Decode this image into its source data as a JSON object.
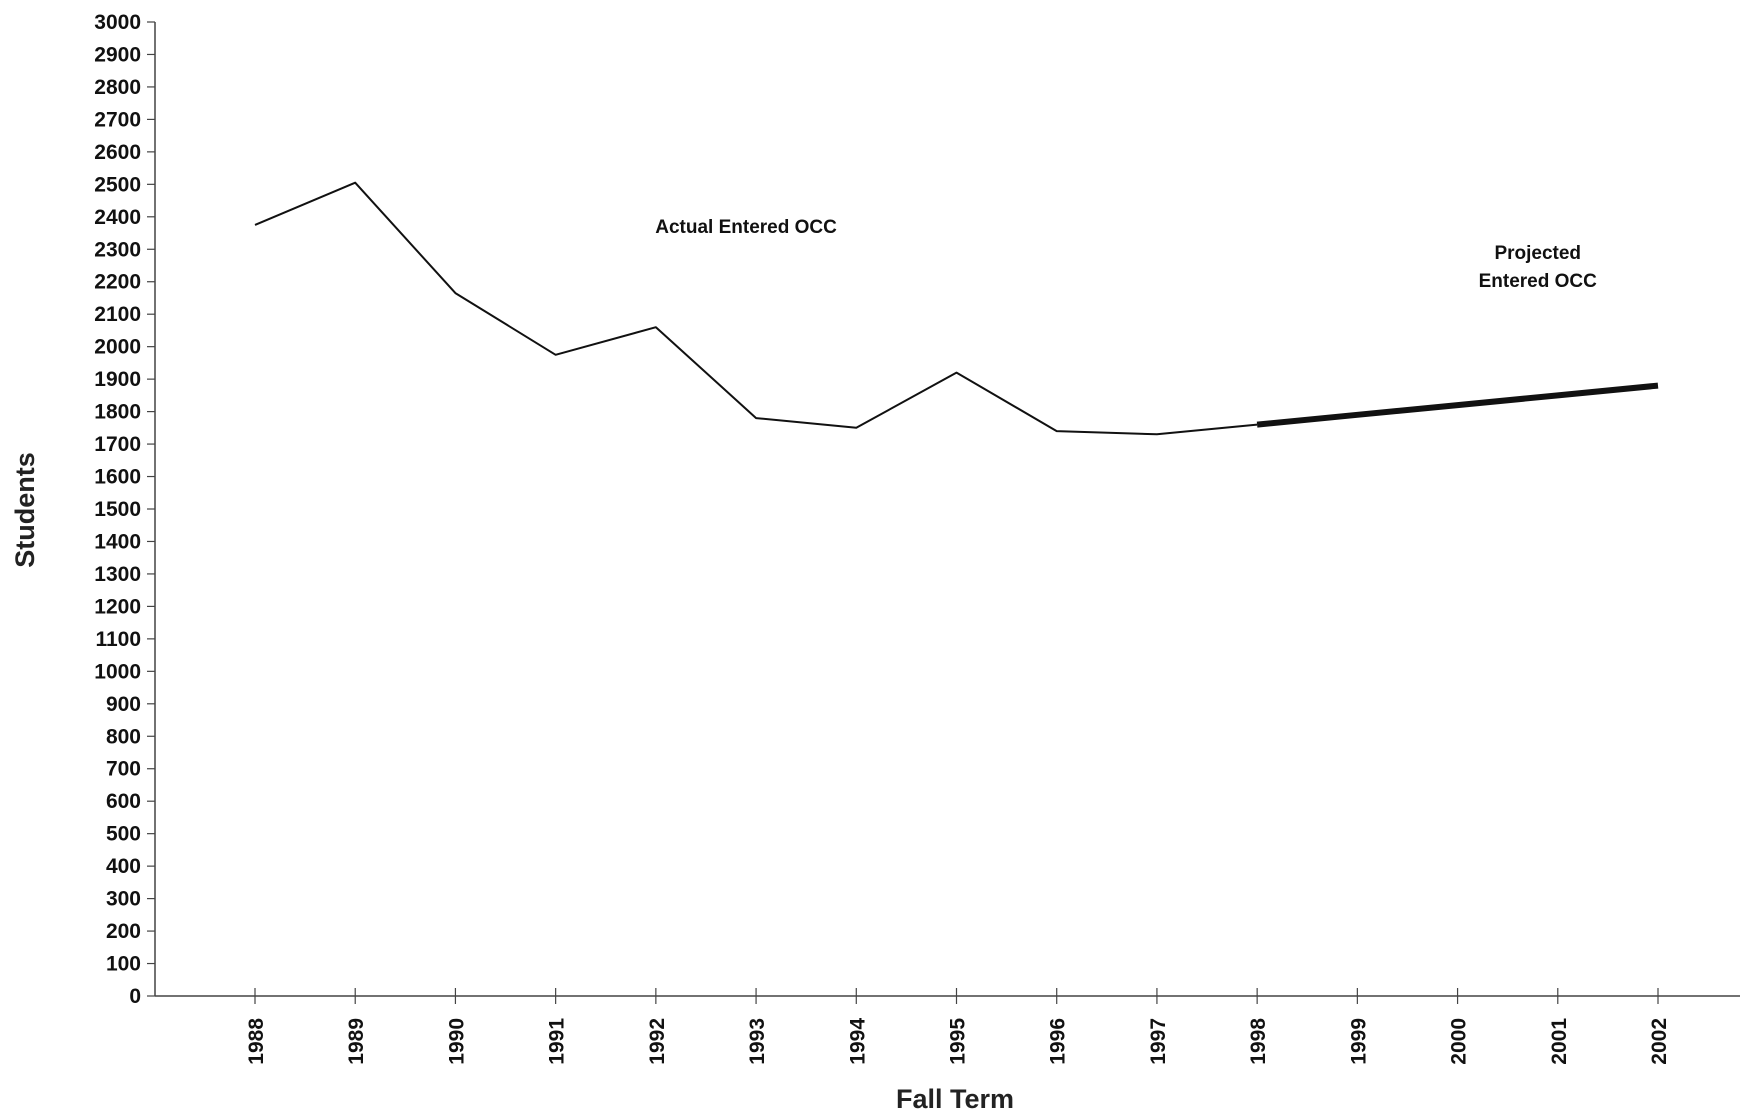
{
  "chart_data": {
    "type": "line",
    "xlabel": "Fall Term",
    "ylabel": "Students",
    "ylim": [
      0,
      3000
    ],
    "y_tick_step": 100,
    "grid": false,
    "categories": [
      "1988",
      "1989",
      "1990",
      "1991",
      "1992",
      "1993",
      "1994",
      "1995",
      "1996",
      "1997",
      "1998",
      "1999",
      "2000",
      "2001",
      "2002"
    ],
    "series": [
      {
        "style": "thin",
        "x": [
          "1988",
          "1989",
          "1990",
          "1991",
          "1992",
          "1993",
          "1994",
          "1995",
          "1996",
          "1997",
          "1998"
        ],
        "values": [
          2375,
          2505,
          2165,
          1975,
          2060,
          1780,
          1750,
          1920,
          1740,
          1730,
          1760
        ]
      },
      {
        "style": "thick",
        "x": [
          "1998",
          "1999",
          "2000",
          "2001",
          "2002"
        ],
        "values": [
          1760,
          1790,
          1820,
          1850,
          1880
        ]
      }
    ],
    "annotations": [
      {
        "lines": [
          "Actual Entered OCC"
        ],
        "at_x": "1992.9",
        "at_y": 2350
      },
      {
        "lines": [
          "Projected",
          "Entered OCC"
        ],
        "at_x": "2000.8",
        "at_y": 2270
      }
    ]
  }
}
